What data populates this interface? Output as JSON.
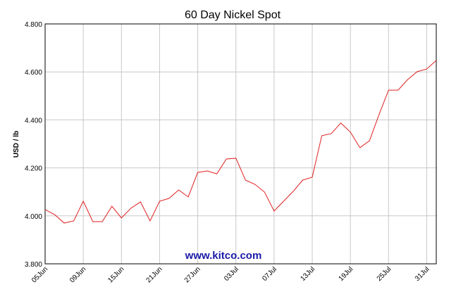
{
  "chart_data": {
    "type": "line",
    "title": "60 Day Nickel Spot",
    "y_label": "USD / lb",
    "watermark": "www.kitco.com",
    "categories": [
      "05Jun",
      null,
      null,
      null,
      "09Jun",
      null,
      null,
      null,
      "15Jun",
      null,
      null,
      null,
      "21Jun",
      null,
      null,
      null,
      "27Jun",
      null,
      null,
      null,
      "03Jul",
      null,
      null,
      null,
      "07Jul",
      null,
      null,
      null,
      "13Jul",
      null,
      null,
      null,
      "19Jul",
      null,
      null,
      null,
      "25Jul",
      null,
      null,
      null,
      "31Jul",
      null
    ],
    "series": [
      {
        "name": "Nickel",
        "color": "#e02020",
        "values": [
          4.026,
          4.005,
          3.97,
          3.979,
          4.061,
          3.976,
          3.976,
          4.04,
          3.991,
          4.032,
          4.058,
          3.979,
          4.061,
          4.073,
          4.108,
          4.079,
          4.181,
          4.187,
          4.175,
          4.237,
          4.24,
          4.149,
          4.131,
          4.099,
          4.02,
          4.061,
          4.102,
          4.149,
          4.161,
          4.334,
          4.343,
          4.387,
          4.349,
          4.284,
          4.313,
          4.422,
          4.524,
          4.524,
          4.568,
          4.601,
          4.612,
          4.648
        ]
      }
    ],
    "ylim": [
      3.8,
      4.8
    ],
    "yticks": [
      {
        "value": 3.8,
        "label": "3.800"
      },
      {
        "value": 4.0,
        "label": "4.000"
      },
      {
        "value": 4.2,
        "label": "4.200"
      },
      {
        "value": 4.4,
        "label": "4.400"
      },
      {
        "value": 4.6,
        "label": "4.600"
      },
      {
        "value": 4.8,
        "label": "4.800"
      }
    ],
    "grid": true
  }
}
